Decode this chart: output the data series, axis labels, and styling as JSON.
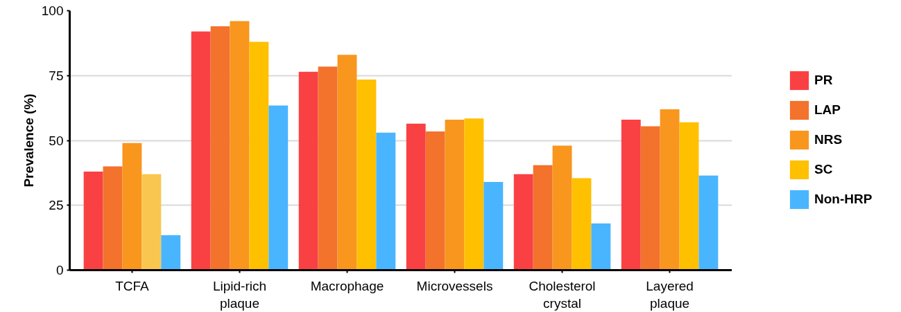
{
  "chart_data": {
    "type": "bar",
    "ylabel": "Prevalence (%)",
    "categories": [
      "TCFA",
      "Lipid-rich plaque",
      "Macrophage",
      "Microvessels",
      "Cholesterol crystal",
      "Layered plaque"
    ],
    "series": [
      {
        "name": "PR",
        "color": "#f94144",
        "values": [
          38,
          92,
          76.5,
          56.5,
          37,
          58
        ]
      },
      {
        "name": "LAP",
        "color": "#f3722c",
        "values": [
          40,
          94,
          78.5,
          53.5,
          40.5,
          55.5
        ]
      },
      {
        "name": "NRS",
        "color": "#f8961e",
        "values": [
          49,
          96,
          83,
          58,
          48,
          62
        ]
      },
      {
        "name": "SC",
        "color": "#ffc000",
        "colors": [
          "#f9c74f",
          "#ffc000",
          "#ffc000",
          "#ffc000",
          "#ffc000",
          "#ffc000"
        ],
        "values": [
          37,
          88,
          73.5,
          58.5,
          35.5,
          57
        ]
      },
      {
        "name": "Non-HRP",
        "color": "#4ab5ff",
        "values": [
          13.5,
          63.5,
          53,
          34,
          18,
          36.5
        ]
      }
    ],
    "ylim": [
      0,
      100
    ],
    "yticks": [
      0,
      25,
      50,
      75,
      100
    ],
    "grid": "y",
    "legend": "right"
  }
}
